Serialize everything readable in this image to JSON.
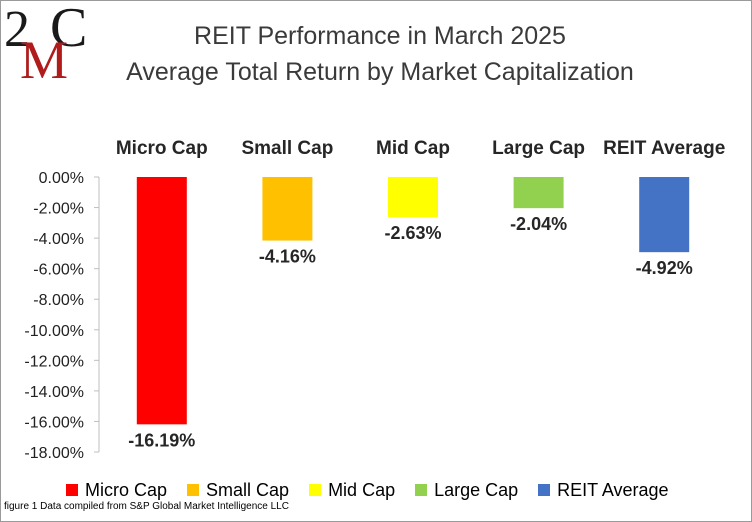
{
  "logo": {
    "text_top": "2",
    "text_mid": "M",
    "text_c": "C"
  },
  "chart_data": {
    "type": "bar",
    "title": "REIT Performance in March 2025",
    "subtitle": "Average Total Return by Market Capitalization",
    "categories": [
      "Micro Cap",
      "Small Cap",
      "Mid Cap",
      "Large Cap",
      "REIT Average"
    ],
    "values": [
      -16.19,
      -4.16,
      -2.63,
      -2.04,
      -4.92
    ],
    "data_labels": [
      "-16.19%",
      "-4.16%",
      "-2.63%",
      "-2.04%",
      "-4.92%"
    ],
    "colors": [
      "#ff0000",
      "#ffc000",
      "#ffff00",
      "#92d050",
      "#4472c4"
    ],
    "ylim": [
      -18,
      0
    ],
    "y_ticks": [
      "0.00%",
      "-2.00%",
      "-4.00%",
      "-6.00%",
      "-8.00%",
      "-10.00%",
      "-12.00%",
      "-14.00%",
      "-16.00%",
      "-18.00%"
    ],
    "grid": false,
    "legend": "bottom",
    "xlabel": "",
    "ylabel": ""
  },
  "footnote": "figure 1 Data compiled from S&P Global Market Intelligence LLC"
}
